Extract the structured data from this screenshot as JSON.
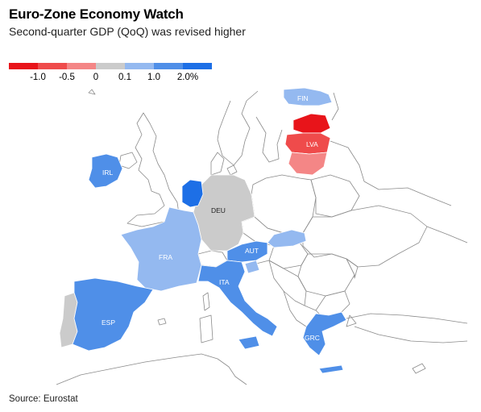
{
  "title": "Euro-Zone Economy Watch",
  "subtitle": "Second-quarter GDP (QoQ) was revised higher",
  "legend": {
    "colors": [
      "#e8141a",
      "#ef4b4b",
      "#f48686",
      "#cbcbcb",
      "#94b9f0",
      "#4f8fe8",
      "#1d6fe6"
    ],
    "labels": [
      "-1.0",
      "-0.5",
      "0",
      "0.1",
      "1.0",
      "2.0%"
    ]
  },
  "countries": {
    "fin": "FIN",
    "lva": "LVA",
    "irl": "IRL",
    "deu": "DEU",
    "fra": "FRA",
    "aut": "AUT",
    "ita": "ITA",
    "esp": "ESP",
    "grc": "GRC"
  },
  "source": "Source: Eurostat"
}
